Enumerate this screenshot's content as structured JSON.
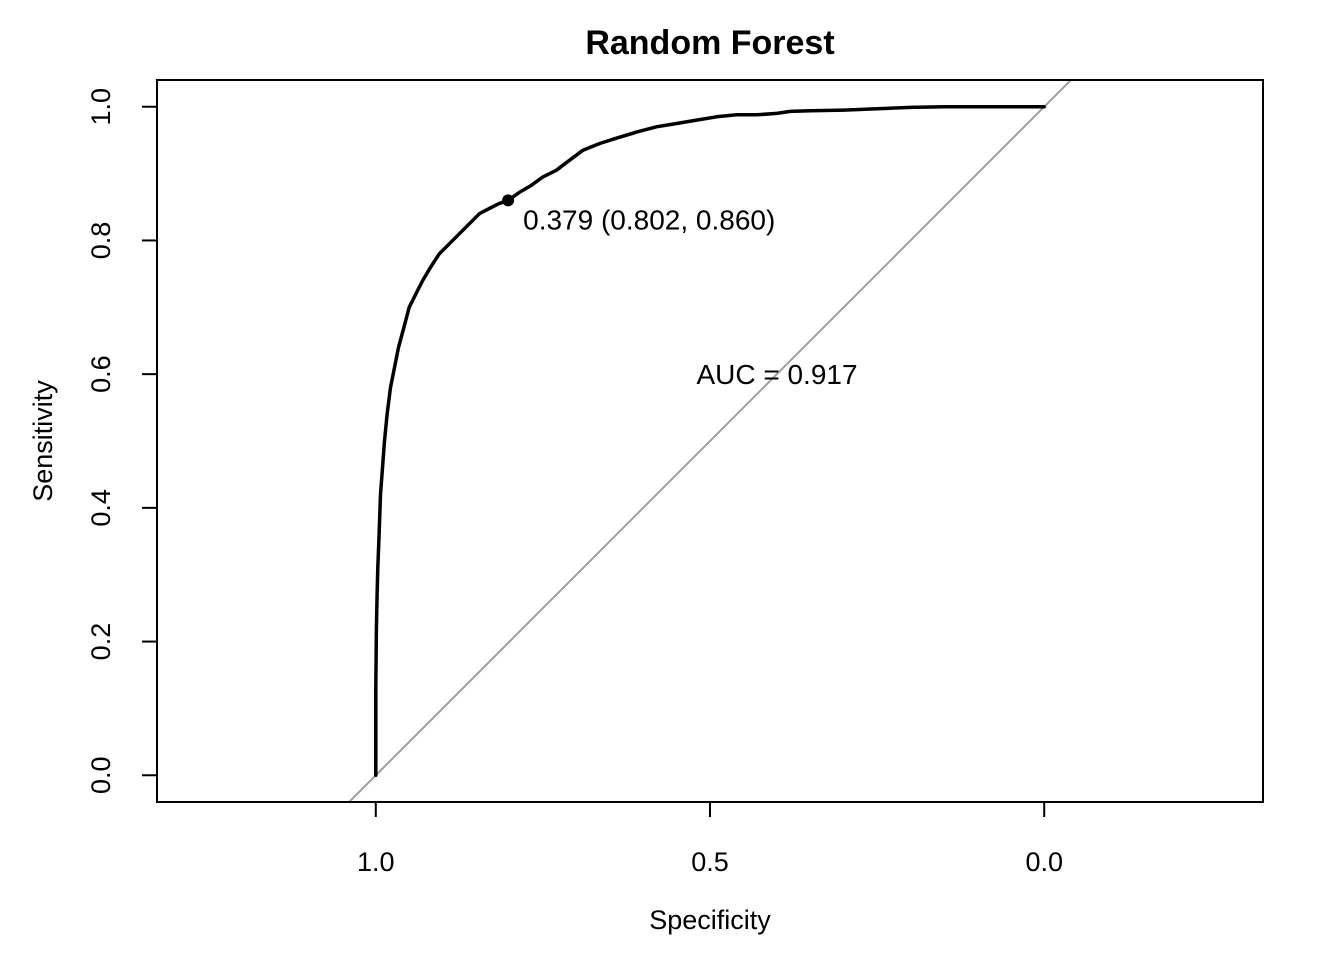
{
  "chart_data": {
    "type": "line",
    "title": "Random Forest",
    "xlabel": "Specificity",
    "ylabel": "Sensitivity",
    "x_reversed": true,
    "xlim": [
      1.3273,
      -0.3273
    ],
    "ylim": [
      -0.04,
      1.04
    ],
    "x_ticks": [
      1.0,
      0.5,
      0.0
    ],
    "x_tick_labels": [
      "1.0",
      "0.5",
      "0.0"
    ],
    "y_ticks": [
      0.0,
      0.2,
      0.4,
      0.6,
      0.8,
      1.0
    ],
    "y_tick_labels": [
      "0.0",
      "0.2",
      "0.4",
      "0.6",
      "0.8",
      "1.0"
    ],
    "grid": false,
    "legend": "none",
    "colors": {
      "roc": "#000000",
      "diagonal": "#9e9e9e"
    },
    "series": [
      {
        "x": [
          1.0,
          1.0,
          0.999,
          0.998,
          0.997,
          0.995,
          0.993,
          0.99,
          0.987,
          0.983,
          0.978,
          0.972,
          0.966,
          0.958,
          0.95,
          0.94,
          0.93,
          0.918,
          0.905,
          0.89,
          0.875,
          0.86,
          0.845,
          0.83,
          0.816,
          0.802,
          0.785,
          0.768,
          0.75,
          0.73,
          0.71,
          0.69,
          0.665,
          0.64,
          0.61,
          0.58,
          0.55,
          0.52,
          0.49,
          0.46,
          0.43,
          0.4,
          0.38,
          0.35,
          0.3,
          0.25,
          0.2,
          0.15,
          0.1,
          0.05,
          0.0
        ],
        "y": [
          0.0,
          0.13,
          0.22,
          0.27,
          0.31,
          0.36,
          0.42,
          0.46,
          0.5,
          0.54,
          0.58,
          0.61,
          0.64,
          0.67,
          0.7,
          0.72,
          0.74,
          0.76,
          0.78,
          0.795,
          0.81,
          0.825,
          0.84,
          0.848,
          0.855,
          0.86,
          0.872,
          0.882,
          0.895,
          0.905,
          0.92,
          0.935,
          0.945,
          0.953,
          0.962,
          0.97,
          0.975,
          0.98,
          0.985,
          0.988,
          0.988,
          0.99,
          0.993,
          0.994,
          0.995,
          0.997,
          0.999,
          1.0,
          1.0,
          1.0,
          1.0
        ]
      }
    ],
    "reference_line": {
      "x": [
        1.0,
        0.0
      ],
      "y": [
        0.0,
        1.0
      ]
    },
    "threshold_point": {
      "x": 0.802,
      "y": 0.86,
      "label": "0.379 (0.802, 0.860)"
    },
    "auc_annotation": {
      "x": 0.5,
      "y": 0.6,
      "label": "AUC = 0.917"
    }
  }
}
